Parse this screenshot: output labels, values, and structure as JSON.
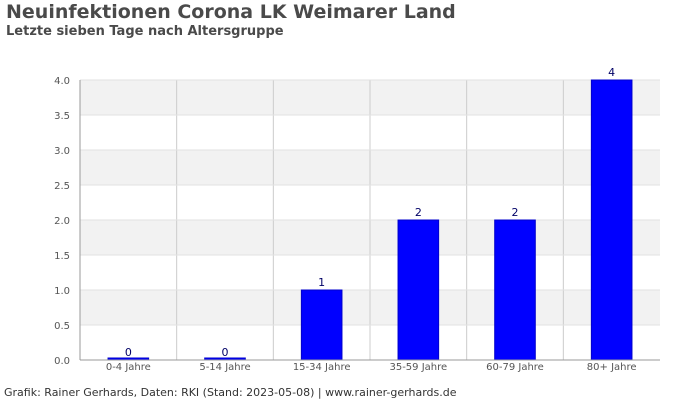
{
  "header": {
    "title": "Neuinfektionen Corona LK Weimarer Land",
    "subtitle": "Letzte sieben Tage nach Altersgruppe"
  },
  "footer": {
    "text": "Grafik: Rainer Gerhards, Daten: RKI (Stand: 2023-05-08) | www.rainer-gerhards.de"
  },
  "colors": {
    "bar": "#0000ff",
    "label": "#000066"
  },
  "chart_data": {
    "type": "bar",
    "title": "Neuinfektionen Corona LK Weimarer Land",
    "subtitle": "Letzte sieben Tage nach Altersgruppe",
    "xlabel": "",
    "ylabel": "",
    "categories": [
      "0-4 Jahre",
      "5-14 Jahre",
      "15-34 Jahre",
      "35-59 Jahre",
      "60-79 Jahre",
      "80+ Jahre"
    ],
    "values": [
      0,
      0,
      1,
      2,
      2,
      4
    ],
    "data_labels": [
      "0",
      "0",
      "1",
      "2",
      "2",
      "4"
    ],
    "ylim": [
      0,
      4
    ],
    "yticks": [
      "0.0",
      "0.5",
      "1.0",
      "1.5",
      "2.0",
      "2.5",
      "3.0",
      "3.5",
      "4.0"
    ],
    "grid": true,
    "legend": "none"
  }
}
